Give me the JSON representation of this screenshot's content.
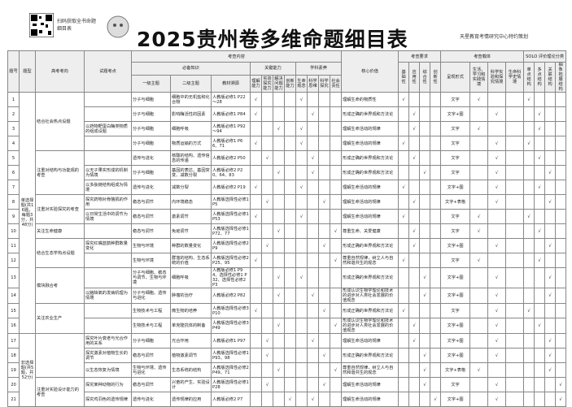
{
  "header": {
    "qr_caption": "扫码获取全书命题细目表",
    "title": "2025贵州卷多维命题细目表",
    "publisher": "天星教育考情研究中心特约策划"
  },
  "table": {
    "headers": {
      "no": "题号",
      "type": "题型",
      "direction": "高考考向",
      "point": "试题考点",
      "content": "考查内容",
      "knowledge": "必备知识",
      "k1": "一级主题",
      "k2": "二级主题",
      "k3": "教材溯源",
      "ability": "关键能力",
      "abilities": [
        "理解能力",
        "实验探究能力",
        "解决问题能力",
        "创新能力"
      ],
      "literacy": "学科素养",
      "literacies": [
        "生命观念",
        "科学思维",
        "科学探究",
        "社会责任"
      ],
      "value": "核心价值",
      "requirement": "考查要求",
      "requirements": [
        "基础性",
        "应用性",
        "综合性",
        "创新性"
      ],
      "carrier": "考查载体",
      "carriers": [
        "呈现形式",
        "生活、学习和实践情境",
        "科学实验和探究情境",
        "生命科学史情境"
      ],
      "solo": "SOLO 评价理论分类",
      "solos": [
        "单点结构",
        "多点结构",
        "关联结构",
        "抽象拓展结构"
      ]
    },
    "sections": [
      {
        "type": "单选择题(共16题，每题3分，共48分)",
        "groups": [
          {
            "direction": "结合社会热点设题",
            "rows": [
              [
                "1",
                null,
                "分子与细胞",
                "细胞中的无机盐和化合物",
                "人教版必修1 P22～28",
                "√",
                null,
                null,
                null,
                "√",
                null,
                null,
                null,
                "理解生命的物质性",
                "√",
                null,
                null,
                null,
                "文字",
                "√",
                null,
                null,
                "√",
                null,
                null,
                null
              ],
              [
                "2",
                null,
                "分子与细胞",
                "影响酶活性的因素",
                "人教版必修1 P84",
                "√",
                null,
                null,
                null,
                null,
                "√",
                null,
                null,
                "形成正确的世界观和方法论",
                null,
                "√",
                null,
                null,
                "文字+图",
                null,
                "√",
                null,
                null,
                "√",
                null,
                null
              ],
              [
                "3",
                "以药物靶蛋白酶类物质的组成设题",
                "分子与细胞",
                "细胞呼吸",
                "人教版必修1 P92～94",
                null,
                null,
                "√",
                null,
                "√",
                null,
                null,
                null,
                "理解生命活动的规律",
                null,
                "√",
                null,
                null,
                "文字",
                "√",
                null,
                null,
                null,
                "√",
                null,
                null
              ],
              [
                "4",
                null,
                "分子与细胞",
                "物质运输的方式",
                "人教版必修1 P66、71",
                "√",
                null,
                null,
                null,
                "√",
                null,
                null,
                null,
                "理解生命活动的规律",
                "√",
                null,
                null,
                null,
                "文字",
                null,
                "√",
                null,
                "√",
                null,
                null,
                null
              ]
            ]
          },
          {
            "direction": "注重对结构与功能观的考查",
            "rows": [
              [
                "5",
                null,
                "遗传与进化",
                "核酸的结构、遗传信息的传递",
                "人教版必修2 P50",
                null,
                "√",
                null,
                null,
                null,
                "√",
                null,
                null,
                "形成正确的世界观和方法论",
                null,
                "√",
                null,
                null,
                "文字",
                null,
                "√",
                null,
                null,
                "√",
                null,
                null
              ],
              [
                "6",
                "以无子果实形成的机制为情境",
                "分子与细胞",
                "基因的表达、基因突变、减数分裂",
                "人教版必修2 P20、64、83",
                null,
                null,
                "√",
                null,
                null,
                "√",
                null,
                null,
                "形成正确的世界观和方法论",
                null,
                null,
                "√",
                null,
                "文字",
                null,
                "√",
                null,
                null,
                null,
                "√",
                null
              ],
              [
                "7",
                "以多肽链结构组成为情境",
                "遗传与进化",
                "减数分裂",
                "人教版必修2 P19",
                "√",
                null,
                null,
                null,
                "√",
                null,
                null,
                null,
                "理解生命活动的规律",
                "√",
                null,
                null,
                null,
                "文字+图",
                null,
                "√",
                null,
                null,
                "√",
                null,
                null
              ]
            ]
          },
          {
            "direction": "注重对实验探究的考查",
            "rows": [
              [
                "8",
                "探究药物对骨骼肌的作用",
                "稳态与调节",
                "内环境稳态",
                "人教版选择性必修1 P5",
                null,
                "√",
                null,
                null,
                null,
                null,
                "√",
                null,
                "理解生命活动的规律",
                null,
                "√",
                null,
                null,
                "文字+表格",
                null,
                "√",
                null,
                null,
                null,
                "√",
                null
              ],
              [
                "9",
                "以日常生活中的调节为情境",
                "稳态与调节",
                "激素调节",
                "人教版选择性必修1 P53",
                "√",
                null,
                null,
                null,
                "√",
                null,
                null,
                null,
                "理解生命活动的规律",
                "√",
                null,
                null,
                null,
                "文字",
                "√",
                null,
                null,
                "√",
                null,
                null,
                null
              ]
            ]
          },
          {
            "direction": "关注生命健康",
            "rows": [
              [
                "10",
                null,
                "稳态与调节",
                "免疫调节",
                "人教版选择性必修1 P72、77",
                null,
                null,
                "√",
                null,
                null,
                null,
                null,
                "√",
                "尊重生命、关爱健康",
                null,
                "√",
                null,
                null,
                "文字",
                "√",
                null,
                null,
                null,
                "√",
                null,
                null
              ]
            ]
          },
          {
            "direction": "结合生态学热点设题",
            "rows": [
              [
                "11",
                "探究红嘴蓝鹊种群数量变化",
                "生物与环境",
                "种群的数量变化",
                "人教版选择性必修2 P9",
                null,
                "√",
                null,
                null,
                null,
                null,
                "√",
                null,
                "形成正确的世界观和方法论",
                null,
                "√",
                null,
                null,
                "文字+图",
                null,
                "√",
                null,
                null,
                null,
                "√",
                null
              ],
              [
                "12",
                null,
                "生物与环境",
                "群落的结构、生态系统的价值",
                "人教版选择性必修2 P25、95",
                "√",
                null,
                null,
                null,
                null,
                null,
                null,
                "√",
                "尊重自然规律，树立人与自然和谐共生的观念",
                "√",
                null,
                null,
                null,
                "文字",
                "√",
                null,
                null,
                null,
                "√",
                null,
                null
              ]
            ]
          },
          {
            "direction": "模块融合考",
            "rows": [
              [
                "13",
                null,
                "分子与细胞、稳态与调节、生物与环境",
                "细胞呼吸",
                "人教版必修1 P94、选择性必修1 P32、选择性必修2 P3",
                null,
                null,
                "√",
                null,
                "√",
                null,
                null,
                null,
                "形成正确的世界观和方法论",
                null,
                null,
                "√",
                null,
                "文字+图",
                null,
                "√",
                null,
                null,
                null,
                "√",
                null
              ],
              [
                "14",
                "以脑缺氧的发病机理为情境",
                "分子与细胞、遗传与进化",
                "肿瘤的治疗",
                "人教版必修2 P82",
                null,
                null,
                "√",
                null,
                null,
                "√",
                null,
                null,
                "形成认识生物学理论和技术的进步对人类社会发展的价值观念",
                null,
                null,
                "√",
                null,
                "文字+图",
                null,
                "√",
                null,
                null,
                null,
                "√",
                null
              ]
            ]
          },
          {
            "direction": "关注农业生产",
            "rows": [
              [
                "15",
                null,
                "生物技术与工程",
                "微生物的培养",
                "人教版选择性必修3 P10",
                "√",
                null,
                null,
                null,
                null,
                null,
                "√",
                null,
                "形成正确的世界观和方法论",
                "√",
                null,
                null,
                null,
                "文字",
                null,
                "√",
                null,
                "√",
                null,
                null,
                null
              ],
              [
                "16",
                null,
                "生物技术与工程",
                "单克隆抗体的制备",
                "人教版选择性必修3 P49",
                null,
                null,
                "√",
                null,
                null,
                null,
                null,
                "√",
                "形成认识生物学理论和技术的进步对人类社会发展的价值观念",
                null,
                "√",
                null,
                null,
                "文字+图",
                null,
                "√",
                null,
                null,
                "√",
                null,
                null
              ]
            ]
          }
        ]
      },
      {
        "type": "非选择题(共5题，共52分)",
        "groups": [
          {
            "direction": null,
            "rows": [
              [
                "17",
                "探究叶片衰老与光合作用的关系",
                "分子与细胞",
                "光合作用",
                "人教版必修1 P97",
                null,
                "√",
                null,
                null,
                null,
                "√",
                null,
                null,
                "理解生命活动的规律",
                null,
                "√",
                null,
                null,
                "文字+图",
                null,
                "√",
                null,
                null,
                null,
                "√",
                null
              ],
              [
                "18",
                "探究激素对植物生长的调节",
                "稳态与调节",
                "植物激素调节",
                "人教版选择性必修1 P93、98",
                null,
                "√",
                null,
                null,
                null,
                null,
                "√",
                null,
                "形成正确的世界观和方法论",
                null,
                null,
                "√",
                null,
                "文字+图",
                null,
                "√",
                null,
                null,
                null,
                "√",
                null
              ],
              [
                "19",
                "以生态恢复为情境",
                "生物与环境、遗传与进化",
                "生态系统的结构",
                "人教版选择性必修2 P49、71",
                null,
                null,
                "√",
                null,
                null,
                null,
                null,
                "√",
                "尊重自然规律，树立人与自然和谐共生的观念",
                null,
                null,
                "√",
                null,
                "文字+表格",
                "√",
                null,
                null,
                null,
                null,
                "√",
                null
              ]
            ]
          },
          {
            "direction": "注重对实验设计能力的考查",
            "rows": [
              [
                "20",
                "探究某种动物的行为",
                "稳态与调节",
                "兴奋的产生、实验设计",
                "人教版选择性必修1 P28",
                null,
                "√",
                null,
                null,
                null,
                null,
                "√",
                null,
                "理解生命活动的规律",
                null,
                null,
                "√",
                null,
                "文字",
                null,
                "√",
                null,
                null,
                null,
                null,
                "√"
              ],
              [
                "21",
                "探究鸡羽色的遗传规律",
                "遗传与进化",
                "遗传规律的应用",
                "人教版必修2 P7",
                null,
                null,
                null,
                "√",
                null,
                "√",
                null,
                null,
                "理解生命活动的规律",
                null,
                null,
                null,
                "√",
                "文字+图",
                null,
                "√",
                null,
                null,
                null,
                null,
                "√"
              ]
            ]
          }
        ]
      }
    ]
  }
}
